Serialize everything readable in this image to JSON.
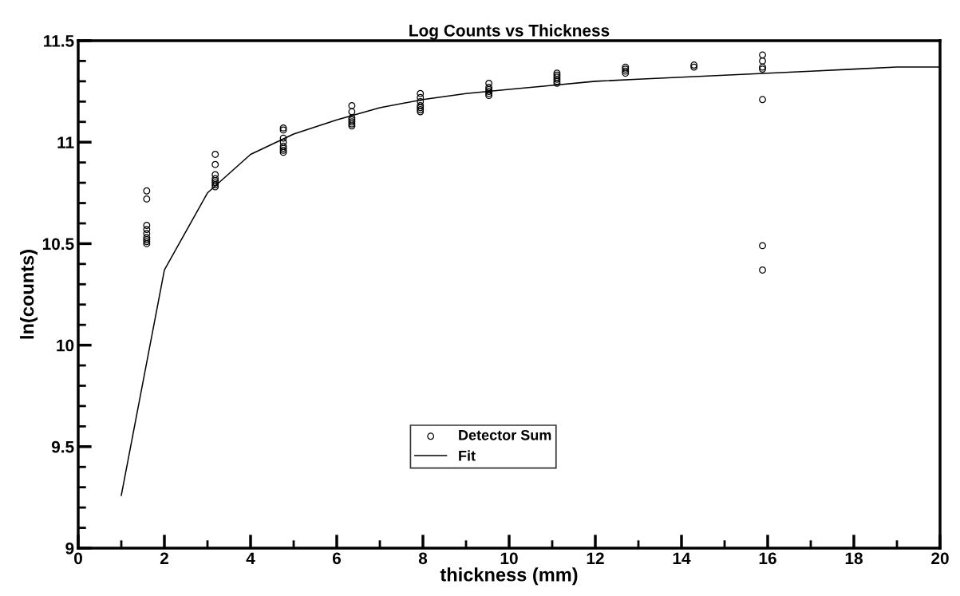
{
  "chart_data": {
    "type": "scatter",
    "title": "Log Counts vs Thickness",
    "xlabel": "thickness (mm)",
    "ylabel": "ln(counts)",
    "xlim": [
      0,
      20
    ],
    "xticks": [
      0,
      2,
      4,
      6,
      8,
      10,
      12,
      14,
      16,
      18,
      20
    ],
    "ylim": [
      9,
      11.5
    ],
    "yticks": [
      9,
      9.5,
      10,
      10.5,
      11,
      11.5
    ],
    "grid": false,
    "legend": "bottom",
    "series": [
      {
        "name": "Detector Sum",
        "marker": "circle",
        "color": "#000000",
        "x": [
          1.59,
          1.59,
          1.59,
          1.59,
          1.59,
          1.59,
          1.59,
          1.59,
          1.59,
          3.18,
          3.18,
          3.18,
          3.18,
          3.18,
          3.18,
          3.18,
          3.18,
          4.76,
          4.76,
          4.76,
          4.76,
          4.76,
          4.76,
          4.76,
          4.76,
          6.35,
          6.35,
          6.35,
          6.35,
          6.35,
          6.35,
          6.35,
          7.94,
          7.94,
          7.94,
          7.94,
          7.94,
          7.94,
          7.94,
          9.53,
          9.53,
          9.53,
          9.53,
          9.53,
          9.53,
          11.11,
          11.11,
          11.11,
          11.11,
          11.11,
          11.11,
          12.7,
          12.7,
          12.7,
          12.7,
          14.29,
          14.29,
          15.88,
          15.88,
          15.88,
          15.88,
          15.88,
          15.88,
          15.88
        ],
        "values": [
          10.76,
          10.72,
          10.59,
          10.57,
          10.55,
          10.53,
          10.52,
          10.51,
          10.5,
          10.94,
          10.89,
          10.84,
          10.82,
          10.81,
          10.8,
          10.79,
          10.78,
          11.07,
          11.06,
          11.02,
          11.0,
          10.98,
          10.97,
          10.96,
          10.95,
          11.18,
          11.15,
          11.12,
          11.11,
          11.1,
          11.09,
          11.08,
          11.24,
          11.22,
          11.2,
          11.18,
          11.17,
          11.16,
          11.15,
          11.29,
          11.27,
          11.26,
          11.25,
          11.24,
          11.23,
          11.34,
          11.33,
          11.32,
          11.31,
          11.3,
          11.29,
          11.37,
          11.36,
          11.35,
          11.34,
          11.38,
          11.37,
          11.43,
          11.4,
          11.37,
          11.36,
          11.21,
          10.49,
          10.37
        ]
      },
      {
        "name": "Fit",
        "type": "line",
        "marker": "none",
        "line_style": "solid",
        "color": "#000000",
        "x": [
          1,
          2,
          3,
          4,
          5,
          6,
          7,
          8,
          9,
          10,
          11,
          12,
          13,
          14,
          15,
          16,
          17,
          18,
          19,
          20
        ],
        "values": [
          9.26,
          10.37,
          10.75,
          10.94,
          11.04,
          11.11,
          11.17,
          11.21,
          11.24,
          11.26,
          11.28,
          11.3,
          11.31,
          11.32,
          11.33,
          11.34,
          11.35,
          11.36,
          11.37,
          11.37
        ]
      }
    ]
  }
}
